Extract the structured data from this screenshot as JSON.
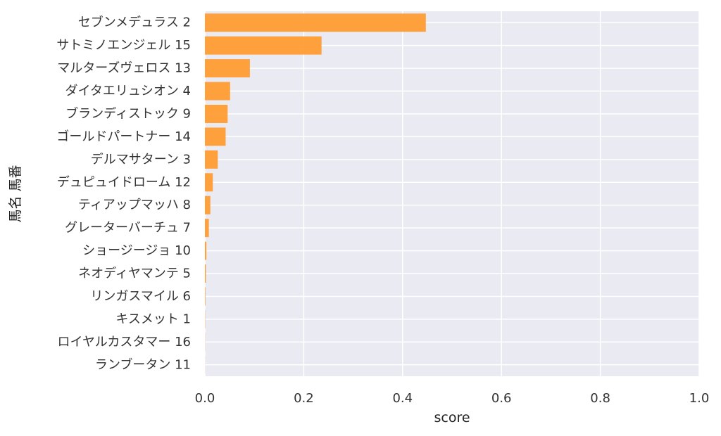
{
  "chart_data": {
    "type": "bar",
    "orientation": "horizontal",
    "categories": [
      "セブンメデュラス 2",
      "サトミノエンジェル 15",
      "マルターズヴェロス 13",
      "ダイタエリュシオン 4",
      "ブランディストック 9",
      "ゴールドパートナー 14",
      "デルマサターン 3",
      "デュピュイドローム 12",
      "ティアップマッハ 8",
      "グレーターバーチュ 7",
      "ショージージョ 10",
      "ネオディヤマンテ 5",
      "リンガスマイル 6",
      "キスメット 1",
      "ロイヤルカスタマー 16",
      "ランブータン 11"
    ],
    "values": [
      0.447,
      0.236,
      0.091,
      0.051,
      0.046,
      0.042,
      0.026,
      0.016,
      0.011,
      0.008,
      0.003,
      0.002,
      0.001,
      0.0005,
      0.0003,
      0.0002
    ],
    "xlabel": "score",
    "ylabel": "馬名 馬番",
    "xlim": [
      0,
      1.0
    ],
    "xticks": [
      "0.0",
      "0.2",
      "0.4",
      "0.6",
      "0.8",
      "1.0"
    ],
    "grid": true,
    "colors": {
      "bar": "#ff9a2e",
      "plot_background": "#eaeaf2",
      "grid": "#ffffff"
    }
  }
}
